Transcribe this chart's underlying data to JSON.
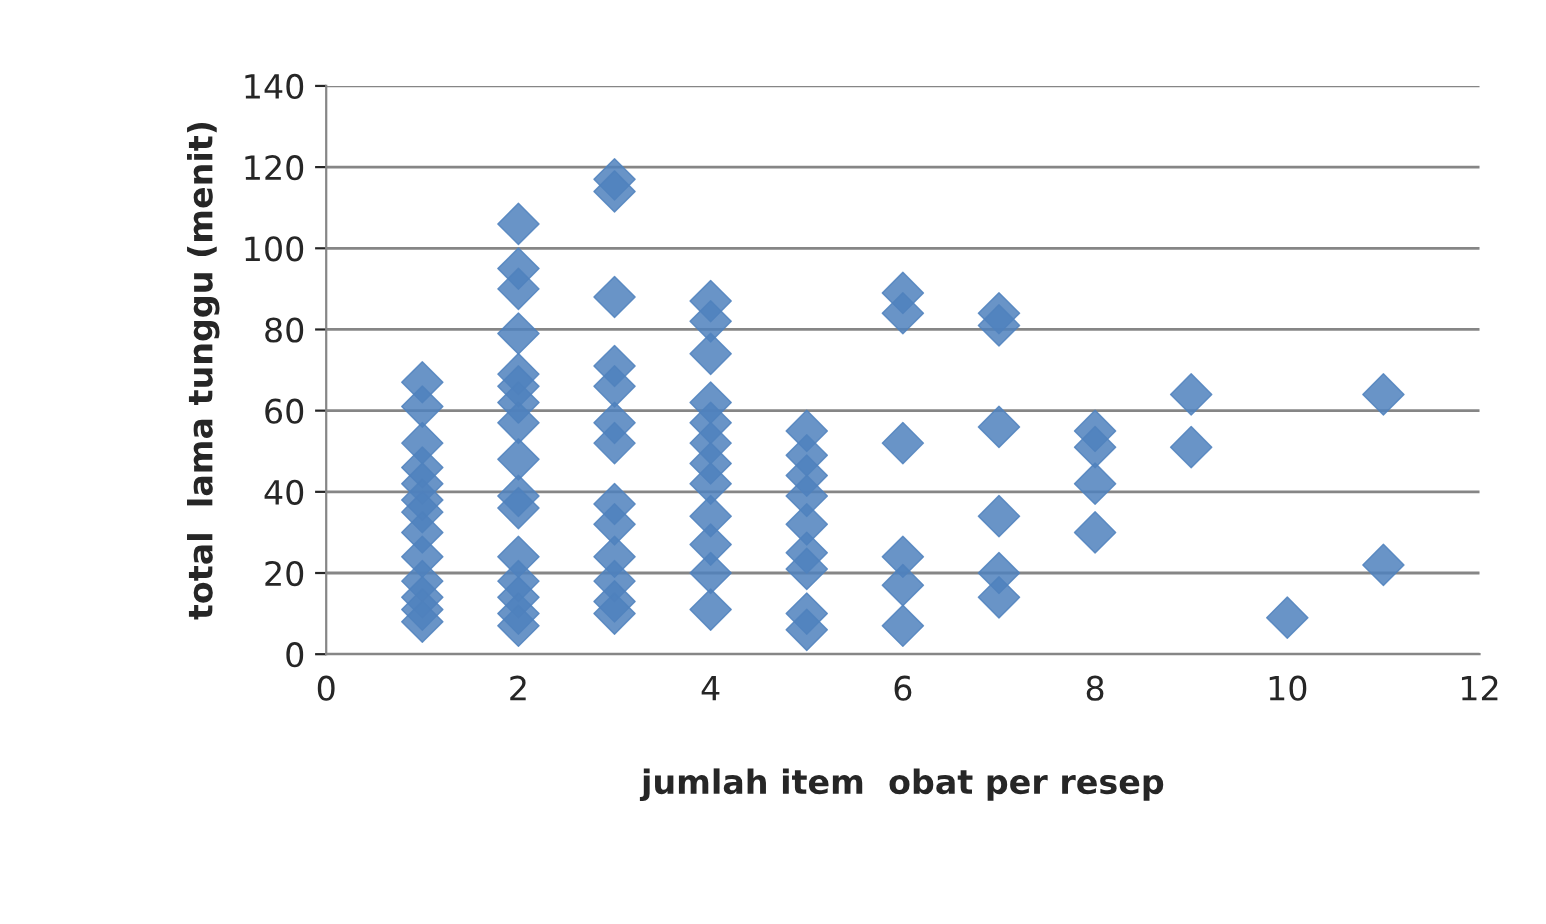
{
  "chart_data": {
    "type": "scatter",
    "xlabel": "jumlah item  obat per resep",
    "ylabel": "total  lama tunggu (menit)",
    "series": [
      {
        "color": "#4f81bd",
        "x": [
          1,
          1,
          1,
          1,
          1,
          1,
          1,
          1,
          1,
          1,
          1,
          1,
          1,
          2,
          2,
          2,
          2,
          2,
          2,
          2,
          2,
          2,
          2,
          2,
          2,
          2,
          2,
          2,
          2,
          3,
          3,
          3,
          3,
          3,
          3,
          3,
          3,
          3,
          3,
          3,
          3,
          3,
          4,
          4,
          4,
          4,
          4,
          4,
          4,
          4,
          4,
          4,
          4,
          4,
          5,
          5,
          5,
          5,
          5,
          5,
          5,
          5,
          5,
          6,
          6,
          6,
          6,
          6,
          6,
          7,
          7,
          7,
          7,
          7,
          7,
          8,
          8,
          8,
          8,
          9,
          9,
          10,
          11,
          11
        ],
        "values": [
          67,
          61,
          52,
          46,
          42,
          38,
          35,
          30,
          24,
          18,
          14,
          11,
          8,
          106,
          95,
          90,
          79,
          69,
          66,
          62,
          57,
          48,
          39,
          36,
          24,
          18,
          14,
          10,
          7,
          117,
          114,
          88,
          71,
          66,
          57,
          52,
          37,
          32,
          24,
          18,
          13,
          10,
          87,
          82,
          74,
          62,
          57,
          52,
          47,
          42,
          34,
          27,
          20,
          11,
          55,
          49,
          44,
          39,
          32,
          25,
          21,
          10,
          6,
          89,
          84,
          52,
          24,
          17,
          7,
          84,
          81,
          56,
          34,
          20,
          14,
          55,
          51,
          42,
          30,
          64,
          51,
          9,
          64,
          22
        ]
      }
    ],
    "xlim": [
      0,
      12
    ],
    "xticks": [
      0,
      2,
      4,
      6,
      8,
      10,
      12
    ],
    "ylim": [
      0,
      140
    ],
    "yticks": [
      0,
      20,
      40,
      60,
      80,
      100,
      120,
      140
    ],
    "grid": "y",
    "marker": "diamond"
  }
}
